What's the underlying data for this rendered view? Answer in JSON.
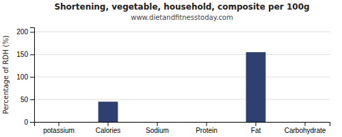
{
  "chart_data": {
    "type": "bar",
    "title": "Shortening, vegetable, household, composite per 100g",
    "subtitle": "www.dietandfitnesstoday.com",
    "ylabel": "Percentage of RDH (%)",
    "categories": [
      "potassium",
      "Calories",
      "Sodium",
      "Protein",
      "Fat",
      "Carbohydrate"
    ],
    "values": [
      0,
      45,
      0,
      0,
      155,
      0
    ],
    "color": "#2e4070",
    "ylim": [
      0,
      210
    ],
    "yticks": [
      0,
      50,
      100,
      150,
      200
    ],
    "grid": true
  }
}
